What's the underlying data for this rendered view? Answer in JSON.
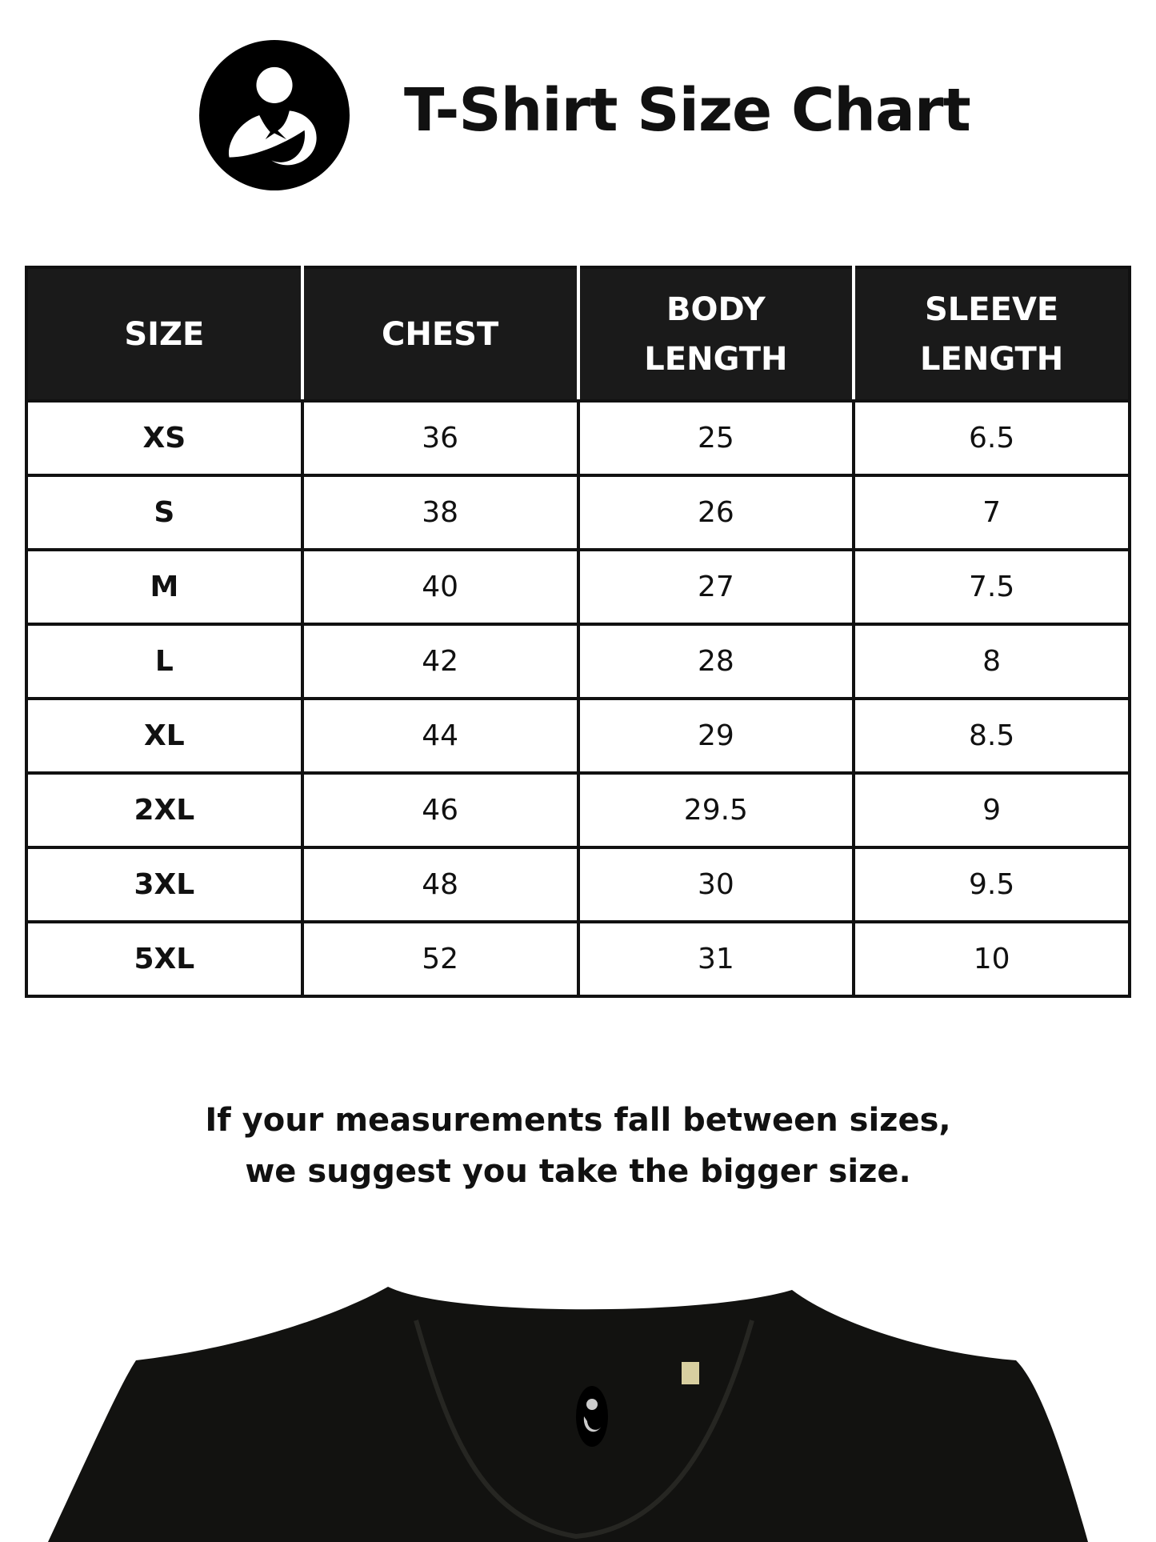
{
  "header": {
    "title": "T-Shirt Size Chart",
    "logo": "mother-and-child-logo-icon"
  },
  "table": {
    "columns": [
      "SIZE",
      "CHEST",
      "BODY\nLENGTH",
      "SLEEVE\nLENGTH"
    ],
    "rows": [
      [
        "XS",
        "36",
        "25",
        "6.5"
      ],
      [
        "S",
        "38",
        "26",
        "7"
      ],
      [
        "M",
        "40",
        "27",
        "7.5"
      ],
      [
        "L",
        "42",
        "28",
        "8"
      ],
      [
        "XL",
        "44",
        "29",
        "8.5"
      ],
      [
        "2XL",
        "46",
        "29.5",
        "9"
      ],
      [
        "3XL",
        "48",
        "30",
        "9.5"
      ],
      [
        "5XL",
        "52",
        "31",
        "10"
      ]
    ]
  },
  "note": {
    "line1": "If your measurements fall between sizes,",
    "line2": "we suggest you take the bigger size."
  },
  "colors": {
    "header_bg": "#1a1a1a",
    "shirt": "#121210"
  }
}
